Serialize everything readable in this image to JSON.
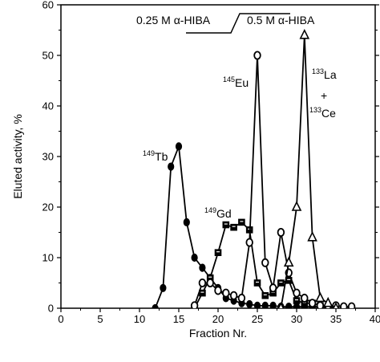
{
  "chart_data": {
    "type": "line",
    "xlabel": "Fraction Nr.",
    "ylabel": "Eluted activity, %",
    "xlim": [
      0,
      40
    ],
    "ylim": [
      0,
      60
    ],
    "x_ticks": [
      "0",
      "5",
      "10",
      "15",
      "20",
      "25",
      "30",
      "35",
      "40"
    ],
    "y_ticks": [
      "0",
      "10",
      "20",
      "30",
      "40",
      "50",
      "60"
    ],
    "grid": false,
    "eluent": {
      "left": "0.25 M α-HIBA",
      "right": "0.5 M α-HIBA",
      "step_at_fraction": 28.5
    },
    "series": [
      {
        "name": "149Tb",
        "label_sup": "149",
        "label_text": "Tb",
        "marker": "filled-ellipse",
        "color": "#000000",
        "x": [
          12,
          13,
          14,
          15,
          16,
          17,
          18,
          19,
          20,
          21,
          22,
          23,
          24,
          25,
          26,
          27,
          28,
          29,
          30,
          31,
          32,
          33,
          34,
          35
        ],
        "y": [
          0,
          4,
          28,
          32,
          17,
          10,
          8,
          6,
          4,
          2,
          1.5,
          1,
          0.8,
          0.5,
          0.5,
          0.5,
          0.3,
          0.3,
          0.3,
          0.3,
          0.3,
          0.3,
          0.3,
          0
        ]
      },
      {
        "name": "149Gd",
        "label_sup": "149",
        "label_text": "Gd",
        "marker": "filled-square",
        "color": "#000000",
        "x": [
          17,
          18,
          19,
          20,
          21,
          22,
          23,
          24,
          25,
          26,
          27,
          28,
          29,
          30,
          31,
          32,
          33,
          34
        ],
        "y": [
          0,
          3,
          6,
          11,
          16.5,
          16,
          17,
          15.5,
          5,
          2.5,
          3,
          5,
          5.5,
          1.5,
          1,
          1,
          0.5,
          0
        ]
      },
      {
        "name": "145Eu",
        "label_sup": "145",
        "label_text": "Eu",
        "marker": "open-circle",
        "color": "#000000",
        "x": [
          17,
          18,
          19,
          20,
          21,
          22,
          23,
          24,
          25,
          26,
          27,
          28,
          29,
          30,
          31,
          32,
          33,
          34,
          35,
          36,
          37
        ],
        "y": [
          0.5,
          5,
          5,
          3.5,
          3,
          2.5,
          2,
          13,
          50,
          9,
          4,
          15,
          7,
          3,
          2,
          1,
          0.5,
          0.5,
          0.5,
          0.3,
          0.3
        ]
      },
      {
        "name": "133La + 133Ce",
        "label_sup": "133",
        "label_text": "La",
        "label_plus": "+",
        "label2_sup": "133",
        "label2_text": "Ce",
        "marker": "open-triangle",
        "color": "#000000",
        "x": [
          28,
          29,
          30,
          31,
          32,
          33,
          34,
          35
        ],
        "y": [
          0,
          9,
          20,
          54,
          14,
          2,
          1,
          0
        ]
      }
    ]
  }
}
